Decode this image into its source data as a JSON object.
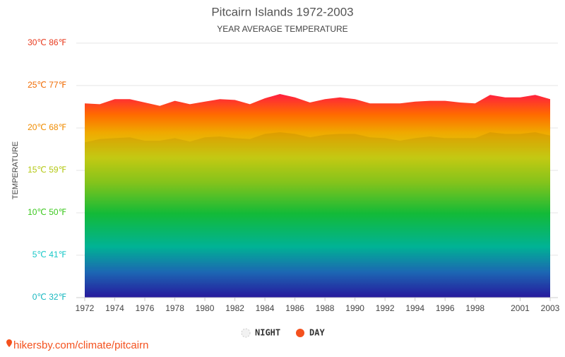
{
  "chart_data": {
    "type": "area",
    "title": "Pitcairn Islands 1972-2003",
    "subtitle": "YEAR AVERAGE TEMPERATURE",
    "y_label": "TEMPERATURE",
    "source": "hikersby.com/climate/pitcairn",
    "x": [
      1972,
      1973,
      1974,
      1975,
      1976,
      1977,
      1978,
      1979,
      1980,
      1981,
      1982,
      1983,
      1984,
      1985,
      1986,
      1987,
      1988,
      1989,
      1990,
      1991,
      1992,
      1993,
      1994,
      1995,
      1996,
      1997,
      1998,
      1999,
      2000,
      2001,
      2002,
      2003
    ],
    "series": [
      {
        "name": "NIGHT",
        "color": "#f2f2f2",
        "values": [
          18.3,
          18.7,
          18.8,
          18.9,
          18.5,
          18.5,
          18.8,
          18.4,
          18.9,
          19.0,
          18.8,
          18.7,
          19.3,
          19.5,
          19.3,
          18.9,
          19.2,
          19.3,
          19.3,
          18.9,
          18.8,
          18.5,
          18.8,
          19.0,
          18.8,
          18.8,
          18.8,
          19.5,
          19.3,
          19.3,
          19.5,
          19.1
        ]
      },
      {
        "name": "DAY",
        "color": "#f4511e",
        "values": [
          22.9,
          22.8,
          23.4,
          23.4,
          23.0,
          22.6,
          23.2,
          22.8,
          23.1,
          23.4,
          23.3,
          22.8,
          23.5,
          24.0,
          23.6,
          23.0,
          23.4,
          23.6,
          23.4,
          22.9,
          22.9,
          22.9,
          23.1,
          23.2,
          23.2,
          23.0,
          22.9,
          23.9,
          23.6,
          23.6,
          23.9,
          23.4
        ]
      }
    ],
    "xlim": [
      1972,
      2003
    ],
    "xticks": [
      1972,
      1974,
      1976,
      1978,
      1980,
      1982,
      1984,
      1986,
      1988,
      1990,
      1992,
      1994,
      1996,
      1998,
      2001,
      2003
    ],
    "ylim": [
      0,
      30
    ],
    "yticks": [
      {
        "value": 0,
        "label": "0℃ 32℉"
      },
      {
        "value": 5,
        "label": "5℃ 41℉"
      },
      {
        "value": 10,
        "label": "10℃ 50℉"
      },
      {
        "value": 15,
        "label": "15℃ 59℉"
      },
      {
        "value": 20,
        "label": "20℃ 68℉"
      },
      {
        "value": 25,
        "label": "25℃ 77℉"
      },
      {
        "value": 30,
        "label": "30℃ 86℉"
      }
    ],
    "grid": true
  }
}
